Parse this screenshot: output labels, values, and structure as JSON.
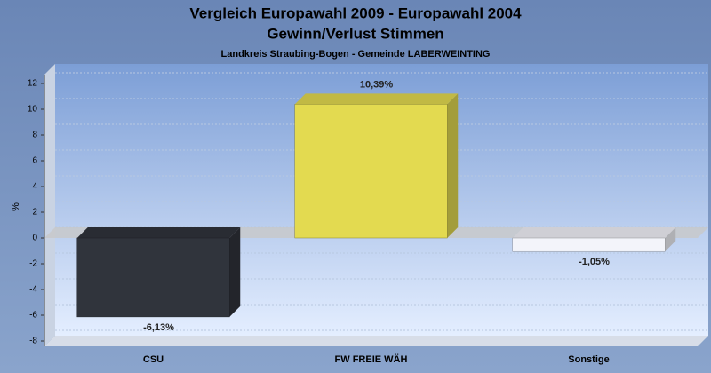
{
  "chart_data": {
    "type": "bar",
    "title": "Vergleich Europawahl 2009 - Europawahl 2004",
    "subtitle": "Gewinn/Verlust Stimmen",
    "caption": "Landkreis Straubing-Bogen - Gemeinde LABERWEINTING",
    "y_label": "%",
    "categories": [
      "CSU",
      "FW FREIE WÄH",
      "Sonstige"
    ],
    "series": [
      {
        "colors": [
          "#30343c",
          "#e3da50",
          "#f3f4fa"
        ],
        "values": [
          -6.13,
          10.39,
          -1.05
        ],
        "value_labels": [
          "-6,13%",
          "10,39%",
          "-1,05%"
        ]
      }
    ],
    "ylim": [
      -8,
      12
    ],
    "yticks": [
      -8,
      -6,
      -4,
      -2,
      0,
      2,
      4,
      6,
      8,
      10,
      12
    ],
    "grid": true
  }
}
